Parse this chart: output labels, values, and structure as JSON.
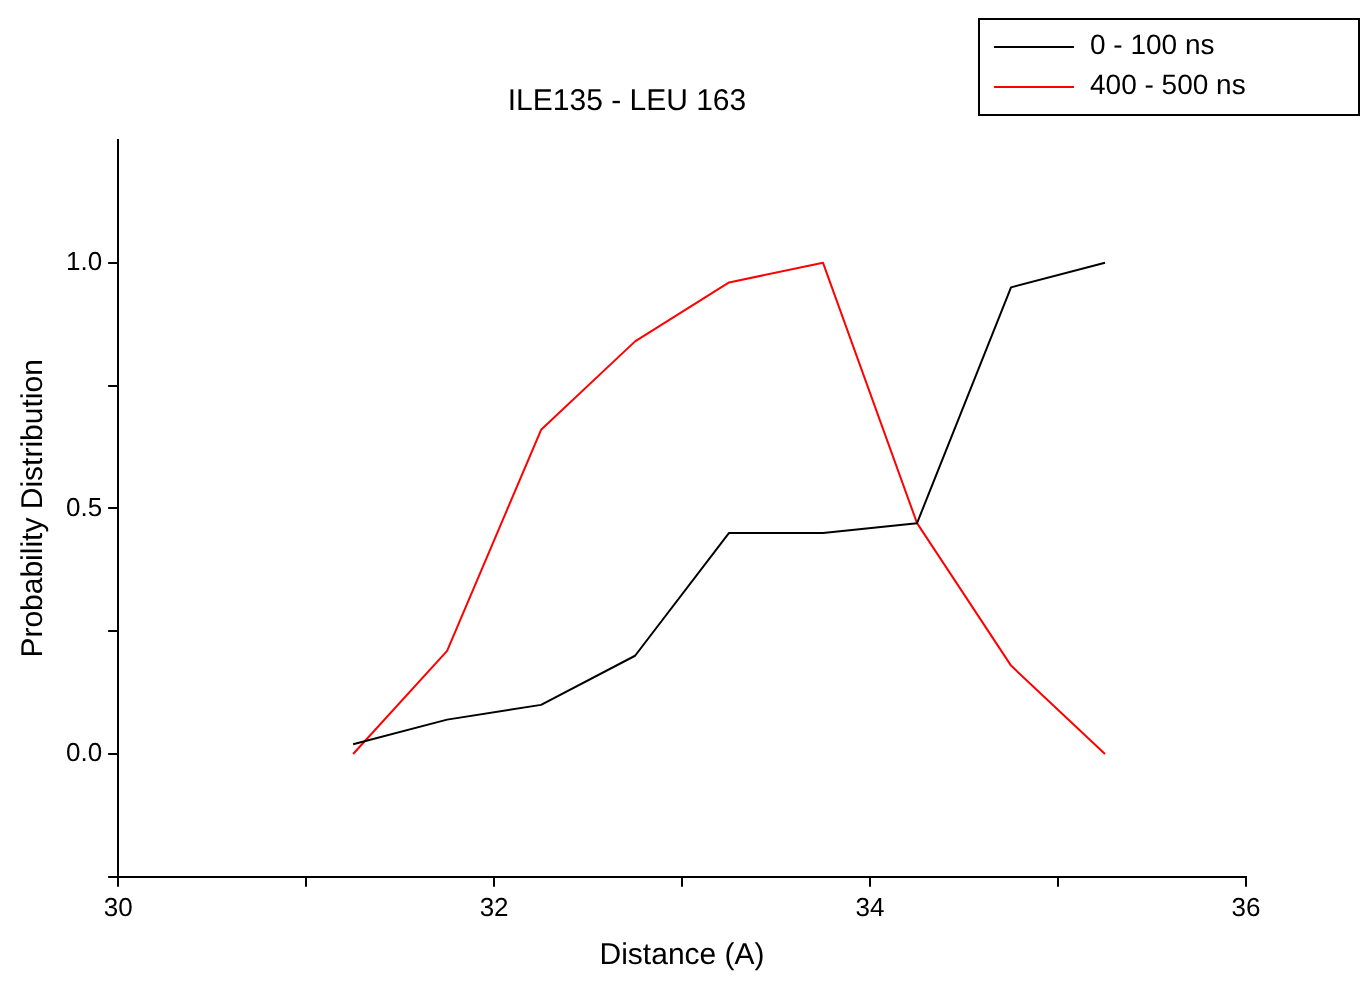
{
  "chart_data": {
    "type": "line",
    "title": "ILE135 - LEU 163",
    "xlabel": "Distance (A)",
    "ylabel": "Probability Distribution",
    "x": [
      31.25,
      31.75,
      32.25,
      32.75,
      33.25,
      33.75,
      34.25,
      34.75,
      35.25
    ],
    "series": [
      {
        "name": "0 - 100 ns",
        "color": "#000000",
        "values": [
          0.02,
          0.07,
          0.1,
          0.2,
          0.45,
          0.45,
          0.47,
          0.95,
          1.0
        ]
      },
      {
        "name": "400 - 500 ns",
        "color": "#ff0000",
        "values": [
          0.0,
          0.21,
          0.66,
          0.84,
          0.96,
          1.0,
          0.47,
          0.18,
          0.0
        ]
      }
    ],
    "xlim": [
      30,
      36
    ],
    "xticks": [
      30,
      {
        "value": 31,
        "label": null
      },
      32,
      {
        "value": 33,
        "label": null
      },
      34,
      {
        "value": 35,
        "label": null
      },
      36
    ],
    "ylim": [
      -0.25,
      1.25
    ],
    "yticks": [
      {
        "value": -0.25,
        "label": null
      },
      {
        "value": 0,
        "label": "0.0"
      },
      {
        "value": 0.25,
        "label": null
      },
      {
        "value": 0.5,
        "label": "0.5"
      },
      {
        "value": 0.75,
        "label": null
      },
      {
        "value": 1,
        "label": "1.0"
      }
    ],
    "grid": false,
    "legend": "top right",
    "marker": "none",
    "line_style": "solid"
  }
}
